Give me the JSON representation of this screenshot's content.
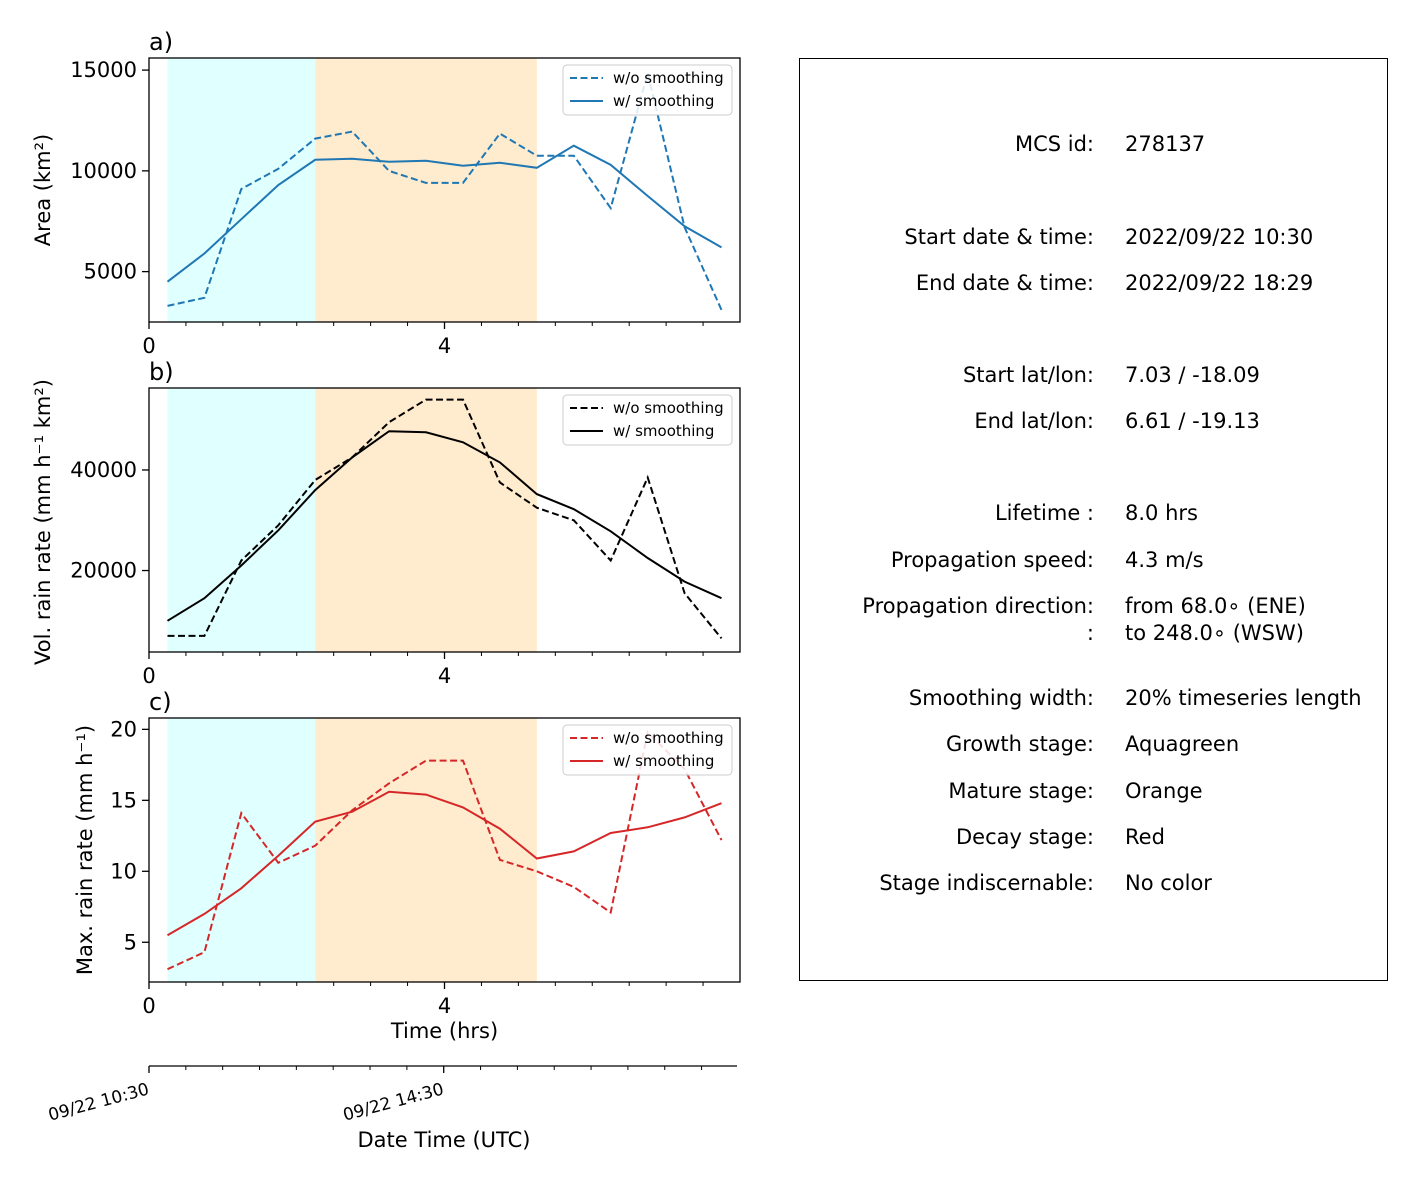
{
  "chart_data": [
    {
      "type": "line",
      "panel_label": "a)",
      "ylabel": "Area  (km²)",
      "xlim": [
        0,
        8
      ],
      "ylim": [
        2500,
        15600
      ],
      "yticks": [
        5000,
        10000,
        15000
      ],
      "xticks": [
        0,
        4
      ],
      "stages": [
        {
          "name": "Growth",
          "start": 0.25,
          "end": 2.25,
          "color": "#e0ffff"
        },
        {
          "name": "Mature",
          "start": 2.25,
          "end": 5.25,
          "color": "#ffebcd"
        }
      ],
      "x": [
        0.25,
        0.75,
        1.25,
        1.75,
        2.25,
        2.75,
        3.25,
        3.75,
        4.25,
        4.75,
        5.25,
        5.75,
        6.25,
        6.75,
        7.25,
        7.75
      ],
      "series": [
        {
          "name": "w/o smoothing",
          "style": "dashed",
          "color": "#1f77b4",
          "values": [
            3300,
            3700,
            9100,
            10100,
            11600,
            11950,
            10000,
            9400,
            9400,
            11850,
            10750,
            10750,
            8150,
            14850,
            7200,
            3100
          ]
        },
        {
          "name": "w/ smoothing",
          "style": "solid",
          "color": "#1f77b4",
          "values": [
            4500,
            5900,
            7600,
            9300,
            10550,
            10600,
            10450,
            10500,
            10250,
            10400,
            10150,
            11250,
            10300,
            8750,
            7250,
            6200
          ]
        }
      ],
      "legend": "top-right"
    },
    {
      "type": "line",
      "panel_label": "b)",
      "ylabel": "Vol. rain rate (mm h⁻¹ km²)",
      "xlim": [
        0,
        8
      ],
      "ylim": [
        3800,
        56300
      ],
      "yticks": [
        20000,
        40000
      ],
      "xticks": [
        0,
        4
      ],
      "stages": [
        {
          "name": "Growth",
          "start": 0.25,
          "end": 2.25,
          "color": "#e0ffff"
        },
        {
          "name": "Mature",
          "start": 2.25,
          "end": 5.25,
          "color": "#ffebcd"
        }
      ],
      "x": [
        0.25,
        0.75,
        1.25,
        1.75,
        2.25,
        2.75,
        3.25,
        3.75,
        4.25,
        4.75,
        5.25,
        5.75,
        6.25,
        6.75,
        7.25,
        7.75
      ],
      "series": [
        {
          "name": "w/o smoothing",
          "style": "dashed",
          "color": "#000000",
          "values": [
            7000,
            7000,
            22000,
            29000,
            38000,
            42500,
            49500,
            54000,
            54000,
            37500,
            32500,
            30000,
            22000,
            38500,
            15500,
            6500
          ]
        },
        {
          "name": "w/ smoothing",
          "style": "solid",
          "color": "#000000",
          "values": [
            10000,
            14500,
            21000,
            28000,
            36000,
            42500,
            47700,
            47500,
            45500,
            41500,
            35200,
            32200,
            27800,
            22500,
            17800,
            14500
          ]
        }
      ],
      "legend": "top-right"
    },
    {
      "type": "line",
      "panel_label": "c)",
      "ylabel": "Max. rain rate  (mm h⁻¹)",
      "xlabel": "Time (hrs)",
      "xlim": [
        0,
        8
      ],
      "ylim": [
        2.2,
        20.8
      ],
      "yticks": [
        5,
        10,
        15,
        20
      ],
      "xticks": [
        0,
        4
      ],
      "stages": [
        {
          "name": "Growth",
          "start": 0.25,
          "end": 2.25,
          "color": "#e0ffff"
        },
        {
          "name": "Mature",
          "start": 2.25,
          "end": 5.25,
          "color": "#ffebcd"
        }
      ],
      "x": [
        0.25,
        0.75,
        1.25,
        1.75,
        2.25,
        2.75,
        3.25,
        3.75,
        4.25,
        4.75,
        5.25,
        5.75,
        6.25,
        6.75,
        7.25,
        7.75
      ],
      "series": [
        {
          "name": "w/o smoothing",
          "style": "dashed",
          "color": "#d62728",
          "values": [
            3.1,
            4.3,
            14.1,
            10.6,
            11.8,
            14.3,
            16.2,
            17.8,
            17.8,
            10.8,
            10.0,
            8.9,
            7.1,
            19.8,
            17.2,
            12.2
          ]
        },
        {
          "name": "w/ smoothing",
          "style": "solid",
          "color": "#d62728",
          "values": [
            5.5,
            7.0,
            8.8,
            11.1,
            13.5,
            14.2,
            15.6,
            15.4,
            14.5,
            13.0,
            10.9,
            11.4,
            12.7,
            13.1,
            13.8,
            14.8
          ]
        }
      ],
      "legend": "top-right"
    }
  ],
  "datetime_axis": {
    "label": "Date Time (UTC)",
    "tick_labels": [
      "09/22 10:30",
      "09/22 14:30"
    ]
  },
  "info_panel": {
    "rows": [
      {
        "label": "MCS id:",
        "value": "278137"
      },
      {
        "label": "Start date & time:",
        "value": "2022/09/22 10:30"
      },
      {
        "label": "End date & time:",
        "value": "2022/09/22 18:29"
      },
      {
        "label": "Start lat/lon:",
        "value": "7.03 / -18.09"
      },
      {
        "label": "End lat/lon:",
        "value": "6.61 / -19.13"
      },
      {
        "label": "Lifetime :",
        "value": "8.0 hrs"
      },
      {
        "label": "Propagation speed:",
        "value": "4.3 m/s"
      },
      {
        "label": "Propagation direction:",
        "value": "from  68.0∘ (ENE)"
      },
      {
        "label": ":",
        "value": "to   248.0∘ (WSW)"
      },
      {
        "label": "Smoothing width:",
        "value": "20% timeseries length"
      },
      {
        "label": "Growth stage:",
        "value": "Aquagreen"
      },
      {
        "label": "Mature stage:",
        "value": "Orange"
      },
      {
        "label": "Decay stage:",
        "value": "Red"
      },
      {
        "label": "Stage indiscernable:",
        "value": "No color"
      }
    ]
  }
}
